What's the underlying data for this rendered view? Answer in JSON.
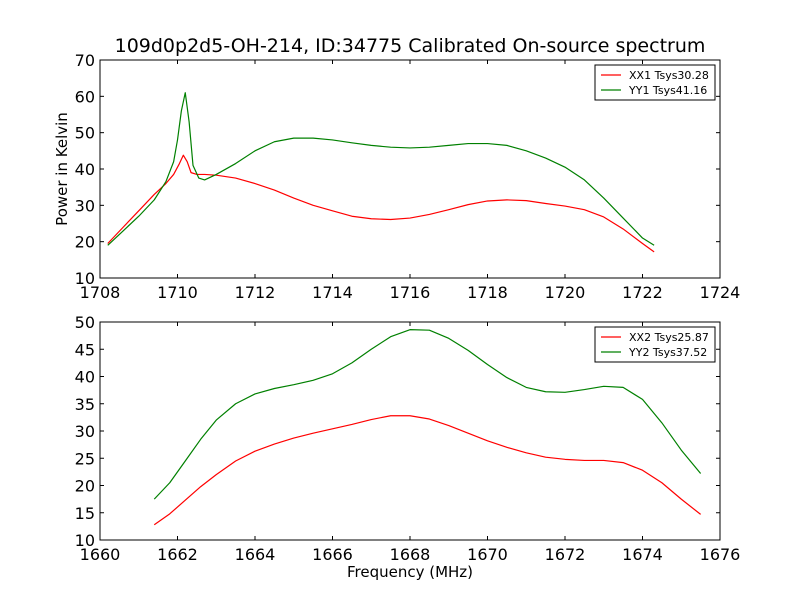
{
  "chart_data": [
    {
      "type": "line",
      "title": "109d0p2d5-OH-214, ID:34775 Calibrated On-source spectrum",
      "xlabel": "",
      "ylabel": "Power in Kelvin",
      "xlim": [
        1708,
        1724
      ],
      "ylim": [
        10,
        70
      ],
      "xticks": [
        1708,
        1710,
        1712,
        1714,
        1716,
        1718,
        1720,
        1722,
        1724
      ],
      "yticks": [
        10,
        20,
        30,
        40,
        50,
        60,
        70
      ],
      "grid": false,
      "legend_position": "top-right",
      "series": [
        {
          "name": "XX1 Tsys30.28",
          "color": "#ff0000",
          "x": [
            1708.2,
            1708.6,
            1709.0,
            1709.4,
            1709.7,
            1709.9,
            1710.05,
            1710.15,
            1710.25,
            1710.35,
            1710.5,
            1710.7,
            1711.0,
            1711.5,
            1712.0,
            1712.5,
            1713.0,
            1713.5,
            1714.0,
            1714.5,
            1715.0,
            1715.5,
            1716.0,
            1716.5,
            1717.0,
            1717.5,
            1718.0,
            1718.5,
            1719.0,
            1719.5,
            1720.0,
            1720.5,
            1721.0,
            1721.5,
            1722.0,
            1722.3
          ],
          "y": [
            19.5,
            24.0,
            28.5,
            33.0,
            36.0,
            38.5,
            41.5,
            43.8,
            42.0,
            39.0,
            38.5,
            38.5,
            38.3,
            37.5,
            36.0,
            34.2,
            32.0,
            30.0,
            28.5,
            27.0,
            26.3,
            26.1,
            26.5,
            27.5,
            28.8,
            30.2,
            31.2,
            31.5,
            31.3,
            30.5,
            29.8,
            28.8,
            26.8,
            23.5,
            19.5,
            17.2
          ]
        },
        {
          "name": "YY1 Tsys41.16",
          "color": "#008000",
          "x": [
            1708.2,
            1708.6,
            1709.0,
            1709.4,
            1709.7,
            1709.9,
            1710.0,
            1710.1,
            1710.2,
            1710.3,
            1710.4,
            1710.55,
            1710.7,
            1711.0,
            1711.5,
            1712.0,
            1712.5,
            1713.0,
            1713.5,
            1714.0,
            1714.5,
            1715.0,
            1715.5,
            1716.0,
            1716.5,
            1717.0,
            1717.5,
            1718.0,
            1718.5,
            1719.0,
            1719.5,
            1720.0,
            1720.5,
            1721.0,
            1721.5,
            1722.0,
            1722.3
          ],
          "y": [
            19.0,
            23.0,
            27.0,
            31.5,
            36.5,
            42.0,
            48.0,
            56.0,
            61.0,
            53.0,
            41.0,
            37.5,
            37.0,
            38.5,
            41.5,
            45.0,
            47.5,
            48.5,
            48.5,
            48.0,
            47.2,
            46.5,
            46.0,
            45.8,
            46.0,
            46.5,
            47.0,
            47.0,
            46.5,
            45.0,
            43.0,
            40.5,
            37.0,
            32.0,
            26.5,
            21.0,
            19.0
          ]
        }
      ]
    },
    {
      "type": "line",
      "title": "",
      "xlabel": "Frequency (MHz)",
      "ylabel": "",
      "xlim": [
        1660,
        1676
      ],
      "ylim": [
        10,
        50
      ],
      "xticks": [
        1660,
        1662,
        1664,
        1666,
        1668,
        1670,
        1672,
        1674,
        1676
      ],
      "yticks": [
        10,
        15,
        20,
        25,
        30,
        35,
        40,
        45,
        50
      ],
      "grid": false,
      "legend_position": "top-right",
      "series": [
        {
          "name": "XX2 Tsys25.87",
          "color": "#ff0000",
          "x": [
            1661.4,
            1661.8,
            1662.2,
            1662.6,
            1663.0,
            1663.5,
            1664.0,
            1664.5,
            1665.0,
            1665.5,
            1666.0,
            1666.5,
            1667.0,
            1667.5,
            1668.0,
            1668.5,
            1669.0,
            1669.5,
            1670.0,
            1670.5,
            1671.0,
            1671.5,
            1672.0,
            1672.5,
            1673.0,
            1673.5,
            1674.0,
            1674.5,
            1675.0,
            1675.5
          ],
          "y": [
            12.8,
            14.8,
            17.3,
            19.8,
            22.0,
            24.5,
            26.3,
            27.6,
            28.7,
            29.6,
            30.4,
            31.2,
            32.1,
            32.8,
            32.8,
            32.2,
            31.0,
            29.6,
            28.2,
            27.0,
            26.0,
            25.2,
            24.8,
            24.6,
            24.6,
            24.2,
            22.8,
            20.5,
            17.5,
            14.7
          ]
        },
        {
          "name": "YY2 Tsys37.52",
          "color": "#008000",
          "x": [
            1661.4,
            1661.8,
            1662.2,
            1662.6,
            1663.0,
            1663.5,
            1664.0,
            1664.5,
            1665.0,
            1665.5,
            1666.0,
            1666.5,
            1667.0,
            1667.5,
            1668.0,
            1668.5,
            1669.0,
            1669.5,
            1670.0,
            1670.5,
            1671.0,
            1671.5,
            1672.0,
            1672.5,
            1673.0,
            1673.5,
            1674.0,
            1674.5,
            1675.0,
            1675.5
          ],
          "y": [
            17.5,
            20.5,
            24.5,
            28.5,
            32.0,
            35.0,
            36.8,
            37.8,
            38.5,
            39.3,
            40.5,
            42.5,
            45.0,
            47.3,
            48.6,
            48.5,
            47.0,
            44.8,
            42.2,
            39.8,
            38.0,
            37.2,
            37.1,
            37.6,
            38.2,
            38.0,
            35.8,
            31.5,
            26.5,
            22.2
          ]
        }
      ]
    }
  ]
}
